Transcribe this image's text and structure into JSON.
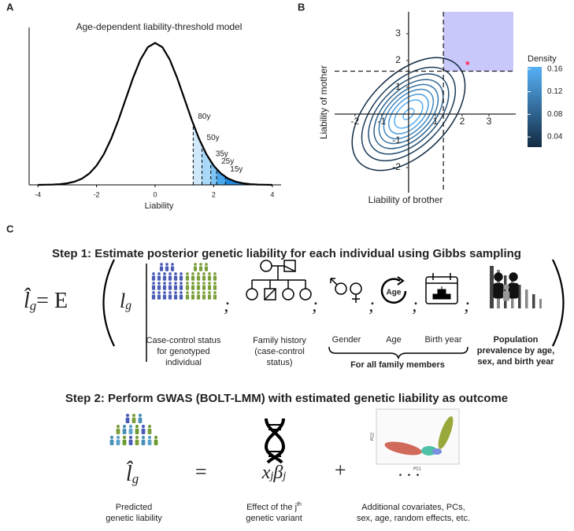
{
  "panels": [
    "A",
    "B",
    "C"
  ],
  "chart_data": [
    {
      "type": "line",
      "title": "Age-dependent liability-threshold model",
      "xlabel": "Liability",
      "x": [
        -4,
        -3.75,
        -3.5,
        -3.25,
        -3,
        -2.75,
        -2.5,
        -2.25,
        -2,
        -1.75,
        -1.5,
        -1.25,
        -1,
        -0.75,
        -0.5,
        -0.25,
        0,
        0.25,
        0.5,
        0.75,
        1,
        1.25,
        1.5,
        1.75,
        2,
        2.25,
        2.5,
        2.75,
        3,
        3.25,
        3.5,
        3.75,
        4
      ],
      "values": [
        0.0001,
        0.0004,
        0.0009,
        0.002,
        0.0044,
        0.0091,
        0.0175,
        0.0317,
        0.054,
        0.0863,
        0.1295,
        0.1826,
        0.242,
        0.3011,
        0.3521,
        0.3867,
        0.3989,
        0.3867,
        0.3521,
        0.3011,
        0.242,
        0.1826,
        0.1295,
        0.0863,
        0.054,
        0.0317,
        0.0175,
        0.0091,
        0.0044,
        0.002,
        0.0009,
        0.0004,
        0.0001
      ],
      "color": "#000000",
      "xlim": [
        -4.3,
        4.3
      ],
      "ylim": [
        0,
        0.42
      ],
      "xticks": [
        -4,
        -2,
        0,
        2,
        4
      ],
      "thresholds": [
        {
          "label": "80y",
          "x": 1.3
        },
        {
          "label": "50y",
          "x": 1.6
        },
        {
          "label": "35y",
          "x": 1.9
        },
        {
          "label": "25y",
          "x": 2.1
        },
        {
          "label": "15y",
          "x": 2.4
        }
      ],
      "fill_colors": [
        "#cfe9fb",
        "#a9d8f8",
        "#7fc3f3",
        "#4aa7ec",
        "#1f88dd"
      ]
    },
    {
      "type": "contour",
      "xlabel": "Liability of brother",
      "ylabel": "Liability of mother",
      "xlim": [
        -2.76,
        4.0
      ],
      "ylim": [
        -2.94,
        3.82
      ],
      "xticks": [
        -2,
        -1,
        1,
        2,
        3
      ],
      "yticks": [
        -2,
        -1,
        1,
        2,
        3
      ],
      "rho": 0.5,
      "levels": [
        0.02,
        0.04,
        0.06,
        0.08,
        0.1,
        0.12,
        0.14,
        0.16,
        0.18
      ],
      "thresholds": {
        "x": 1.3,
        "y": 1.6
      },
      "region_color": "#c9c8fb",
      "point": {
        "x": 2.2,
        "y": 1.9,
        "color": "#ff3366"
      },
      "legend_title": "Density",
      "colorbar_lim": [
        0.022,
        0.164
      ],
      "colorbar_ticks": [
        0.04,
        0.08,
        0.12,
        0.16
      ],
      "colors": [
        "#132b43",
        "#56b1f7"
      ]
    }
  ],
  "step1": {
    "title": "Step 1: Estimate posterior genetic liability for each individual using Gibbs sampling",
    "lhs": "l̂",
    "lhs_sub": "g",
    "func": "= E",
    "arg": "l",
    "arg_sub": "g",
    "separator": ";",
    "case_control": [
      "Case-control status",
      "for genotyped",
      "individual"
    ],
    "family_history": [
      "Family history",
      "(case-control",
      "status)"
    ],
    "gender": "Gender",
    "age_icon": "Age",
    "age": "Age",
    "birth_year": "Birth year",
    "family_members": "For all family members",
    "prevalence": [
      "Population",
      "prevalence by age,",
      "sex, and birth year"
    ]
  },
  "step2": {
    "title": "Step 2: Perform GWAS (BOLT-LMM) with estimated genetic liability as outcome",
    "lhs": "l̂",
    "lhs_sub": "g",
    "eq": "=",
    "x": "x",
    "x_sub": "j",
    "beta": "β",
    "beta_sub": "j",
    "plus": "+",
    "dots": ". . .",
    "pc1": "PC1",
    "pc2": "PC2",
    "predicted": [
      "Predicted",
      "genetic liability"
    ],
    "effect": [
      "Effect of the j",
      "th",
      "genetic variant"
    ],
    "covariates": [
      "Additional covariates, PCs,",
      "sex, age, random effects, etc."
    ]
  }
}
